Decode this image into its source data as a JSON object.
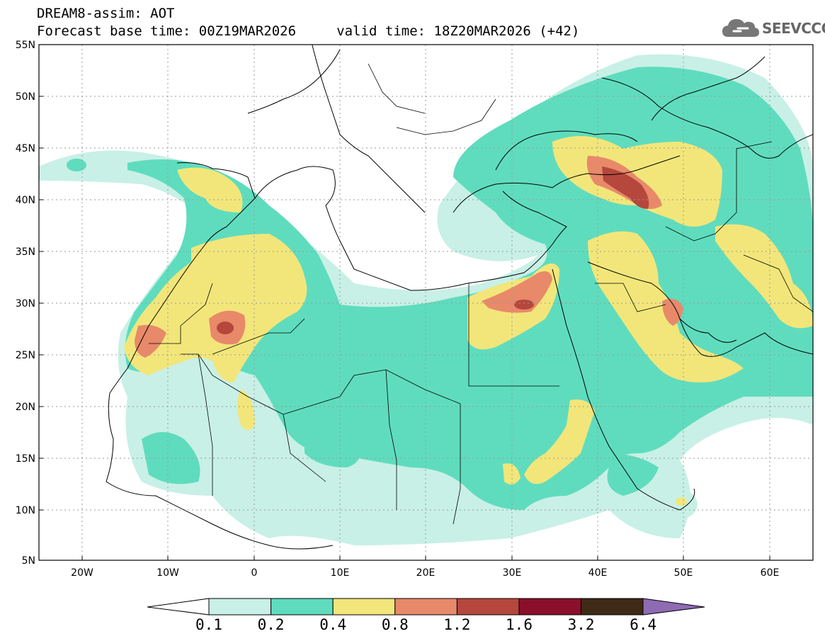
{
  "title": {
    "line1": "DREAM8-assim: AOT",
    "line2": "Forecast base time: 00Z19MAR2026     valid time: 18Z20MAR2026 (+42)"
  },
  "logo": {
    "text": "SEEVCCC",
    "icon": "cloud-icon"
  },
  "map": {
    "projection": "lat-lon",
    "lon_range": [
      -25,
      65
    ],
    "lat_range": [
      5,
      55
    ],
    "lat_ticks": [
      "55N",
      "50N",
      "45N",
      "40N",
      "35N",
      "30N",
      "25N",
      "20N",
      "15N",
      "10N",
      "5N"
    ],
    "lon_ticks": [
      "20W",
      "10W",
      "0",
      "10E",
      "20E",
      "30E",
      "40E",
      "50E",
      "60E"
    ],
    "grid": true
  },
  "colorbar": {
    "levels": [
      "0.1",
      "0.2",
      "0.4",
      "0.8",
      "1.2",
      "1.6",
      "3.2",
      "6.4"
    ],
    "colors": [
      "#c8f0e6",
      "#5fdcbe",
      "#f2e67a",
      "#e8896a",
      "#b5473c",
      "#8b0f2a",
      "#3f2a17"
    ],
    "under_color": "#ffffff",
    "over_color": "#8e6bb3"
  }
}
